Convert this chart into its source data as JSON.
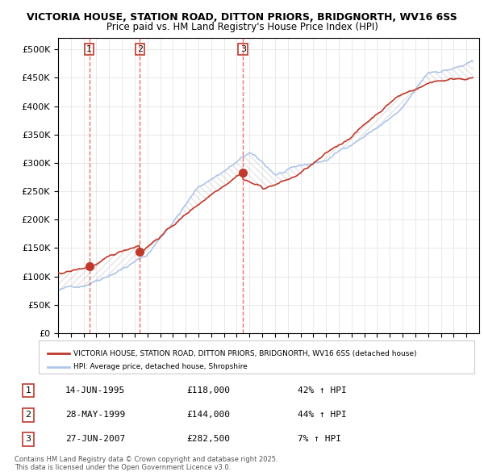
{
  "title_line1": "VICTORIA HOUSE, STATION ROAD, DITTON PRIORS, BRIDGNORTH, WV16 6SS",
  "title_line2": "Price paid vs. HM Land Registry's House Price Index (HPI)",
  "ylabel": "",
  "xlim_years": [
    1993,
    2026
  ],
  "ylim": [
    0,
    520000
  ],
  "yticks": [
    0,
    50000,
    100000,
    150000,
    200000,
    250000,
    300000,
    350000,
    400000,
    450000,
    500000
  ],
  "ytick_labels": [
    "£0",
    "£50K",
    "£100K",
    "£150K",
    "£200K",
    "£250K",
    "£300K",
    "£350K",
    "£400K",
    "£450K",
    "£500K"
  ],
  "hpi_color": "#aec6e8",
  "price_color": "#c0392b",
  "vline_color": "#e74c3c",
  "transaction_marker_color": "#c0392b",
  "transactions": [
    {
      "num": 1,
      "year": 1995.45,
      "price": 118000,
      "label": "14-JUN-1995",
      "amount": "£118,000",
      "pct": "42% ↑ HPI"
    },
    {
      "num": 2,
      "year": 1999.41,
      "price": 144000,
      "label": "28-MAY-1999",
      "amount": "£144,000",
      "pct": "44% ↑ HPI"
    },
    {
      "num": 3,
      "year": 2007.49,
      "price": 282500,
      "label": "27-JUN-2007",
      "amount": "£282,500",
      "pct": "7% ↑ HPI"
    }
  ],
  "legend_price_label": "VICTORIA HOUSE, STATION ROAD, DITTON PRIORS, BRIDGNORTH, WV16 6SS (detached house)",
  "legend_hpi_label": "HPI: Average price, detached house, Shropshire",
  "footer_text": "Contains HM Land Registry data © Crown copyright and database right 2025.\nThis data is licensed under the Open Government Licence v3.0.",
  "table_rows": [
    {
      "num": 1,
      "date": "14-JUN-1995",
      "price": "£118,000",
      "pct": "42% ↑ HPI"
    },
    {
      "num": 2,
      "date": "28-MAY-1999",
      "price": "£144,000",
      "pct": "44% ↑ HPI"
    },
    {
      "num": 3,
      "date": "27-JUN-2007",
      "price": "£282,500",
      "pct": "7% ↑ HPI"
    }
  ]
}
